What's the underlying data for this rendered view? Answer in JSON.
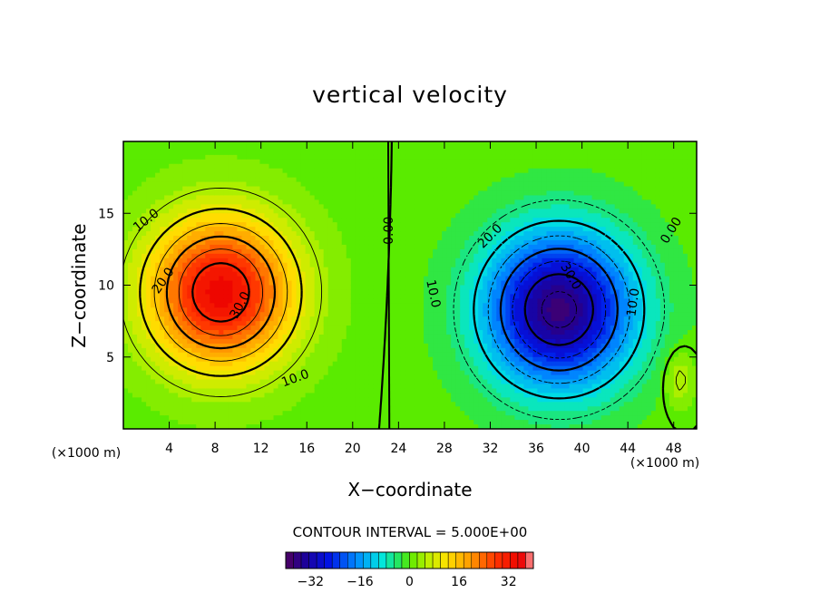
{
  "chart_data": {
    "type": "heatmap",
    "title": "vertical velocity",
    "xlabel": "X−coordinate",
    "ylabel": "Z−coordinate",
    "x_unit_left": "(×1000 m)",
    "x_unit_right": "(×1000 m)",
    "xlim": [
      0,
      50
    ],
    "ylim": [
      0,
      20
    ],
    "x_ticks": [
      4,
      8,
      12,
      16,
      20,
      24,
      28,
      32,
      36,
      40,
      44,
      48
    ],
    "y_ticks": [
      5,
      10,
      15
    ],
    "contour_interval_text": "CONTOUR INTERVAL = 5.000E+00",
    "contour_interval": 5,
    "colorbar": {
      "min": -40,
      "max": 40,
      "ticks": [
        -32,
        -16,
        0,
        16,
        32
      ]
    },
    "features": [
      {
        "kind": "updraft",
        "x": 8.5,
        "z": 9.5,
        "peak": 35
      },
      {
        "kind": "downdraft",
        "x": 38,
        "z": 8.3,
        "peak": -37
      }
    ],
    "contour_labels": [
      {
        "text": "10.0",
        "x": 2.0,
        "z": 14.5,
        "rot": -38
      },
      {
        "text": "20.0",
        "x": 3.5,
        "z": 10.3,
        "rot": -55
      },
      {
        "text": "30.0",
        "x": 10.2,
        "z": 8.6,
        "rot": -62
      },
      {
        "text": "10.0",
        "x": 15.0,
        "z": 3.5,
        "rot": -20
      },
      {
        "text": "0.00",
        "x": 23.2,
        "z": 13.8,
        "rot": -90
      },
      {
        "text": "20.0",
        "x": 32.0,
        "z": 13.4,
        "rot": -45
      },
      {
        "text": "10.0",
        "x": 27.0,
        "z": 9.4,
        "rot": 78
      },
      {
        "text": "30.0",
        "x": 39.0,
        "z": 10.6,
        "rot": 60
      },
      {
        "text": "10.0",
        "x": 44.5,
        "z": 8.8,
        "rot": -82
      },
      {
        "text": "0.00",
        "x": 47.8,
        "z": 13.8,
        "rot": -58
      }
    ]
  }
}
